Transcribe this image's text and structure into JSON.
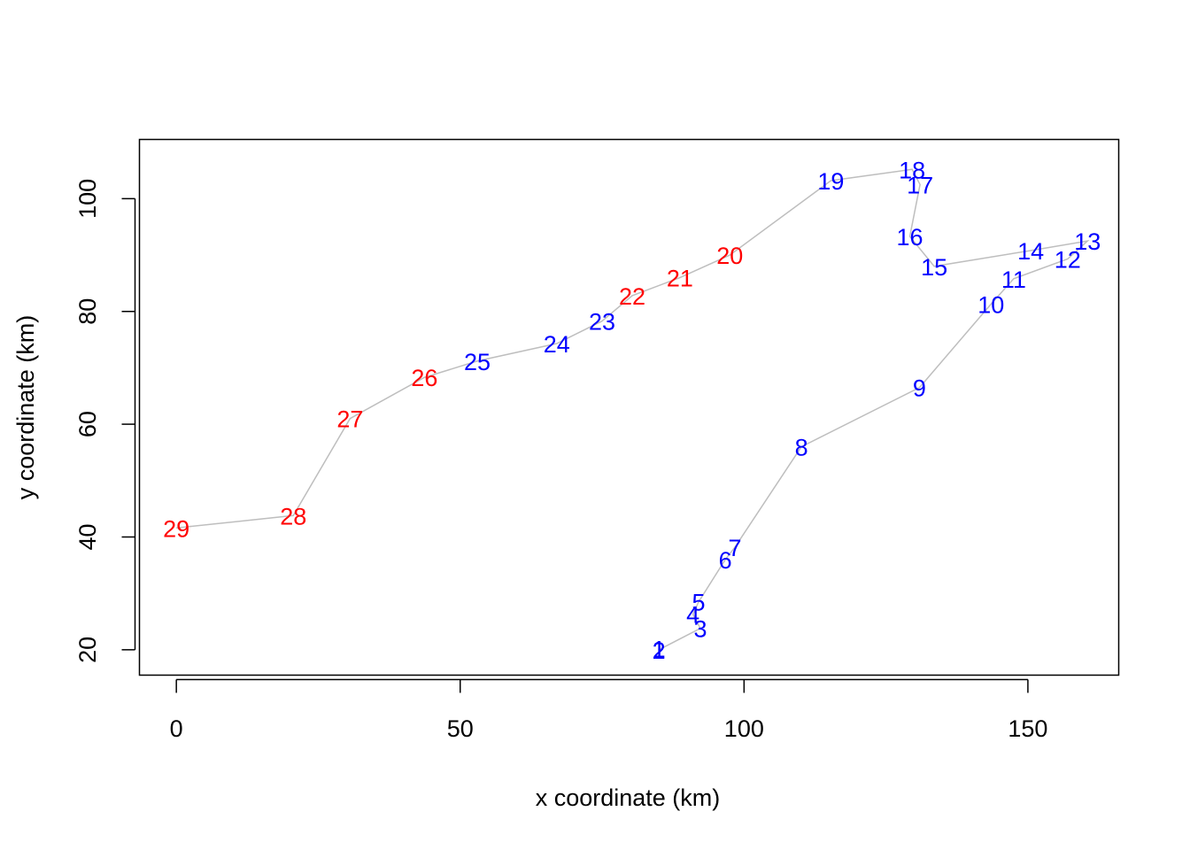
{
  "chart_data": {
    "type": "scatter",
    "title": "",
    "xlabel": "x coordinate (km)",
    "ylabel": "y coordinate (km)",
    "xlim": [
      -6.5,
      166
    ],
    "ylim": [
      15.5,
      110.5
    ],
    "xticks": [
      0,
      50,
      100,
      150
    ],
    "yticks": [
      20,
      40,
      60,
      80,
      100
    ],
    "grid": false,
    "line_color": "#bebebe",
    "colors": {
      "blue": "#0000ff",
      "red": "#ff0000"
    },
    "points": [
      {
        "label": "1",
        "x": 85.0,
        "y": 20.2,
        "color": "blue"
      },
      {
        "label": "2",
        "x": 85.0,
        "y": 20.0,
        "color": "blue"
      },
      {
        "label": "3",
        "x": 92.3,
        "y": 23.8,
        "color": "blue"
      },
      {
        "label": "4",
        "x": 91.0,
        "y": 26.3,
        "color": "blue"
      },
      {
        "label": "5",
        "x": 92.0,
        "y": 28.5,
        "color": "blue"
      },
      {
        "label": "6",
        "x": 96.7,
        "y": 36.0,
        "color": "blue"
      },
      {
        "label": "7",
        "x": 98.4,
        "y": 38.2,
        "color": "blue"
      },
      {
        "label": "8",
        "x": 110.1,
        "y": 56.0,
        "color": "blue"
      },
      {
        "label": "9",
        "x": 130.9,
        "y": 66.5,
        "color": "blue"
      },
      {
        "label": "10",
        "x": 143.5,
        "y": 81.3,
        "color": "blue"
      },
      {
        "label": "11",
        "x": 147.5,
        "y": 85.8,
        "color": "blue"
      },
      {
        "label": "12",
        "x": 157.0,
        "y": 89.3,
        "color": "blue"
      },
      {
        "label": "13",
        "x": 160.5,
        "y": 92.5,
        "color": "blue"
      },
      {
        "label": "14",
        "x": 150.5,
        "y": 90.8,
        "color": "blue"
      },
      {
        "label": "15",
        "x": 133.5,
        "y": 88.0,
        "color": "blue"
      },
      {
        "label": "16",
        "x": 129.2,
        "y": 93.3,
        "color": "blue"
      },
      {
        "label": "17",
        "x": 131.0,
        "y": 102.5,
        "color": "blue"
      },
      {
        "label": "18",
        "x": 129.6,
        "y": 105.2,
        "color": "blue"
      },
      {
        "label": "19",
        "x": 115.3,
        "y": 103.2,
        "color": "blue"
      },
      {
        "label": "20",
        "x": 97.5,
        "y": 90.0,
        "color": "red"
      },
      {
        "label": "21",
        "x": 88.7,
        "y": 86.0,
        "color": "red"
      },
      {
        "label": "22",
        "x": 80.3,
        "y": 82.8,
        "color": "red"
      },
      {
        "label": "23",
        "x": 75.0,
        "y": 78.3,
        "color": "blue"
      },
      {
        "label": "24",
        "x": 67.0,
        "y": 74.3,
        "color": "blue"
      },
      {
        "label": "25",
        "x": 53.0,
        "y": 71.2,
        "color": "blue"
      },
      {
        "label": "26",
        "x": 43.7,
        "y": 68.3,
        "color": "red"
      },
      {
        "label": "27",
        "x": 30.6,
        "y": 61.0,
        "color": "red"
      },
      {
        "label": "28",
        "x": 20.6,
        "y": 43.8,
        "color": "red"
      },
      {
        "label": "29",
        "x": 0.0,
        "y": 41.6,
        "color": "red"
      }
    ]
  }
}
